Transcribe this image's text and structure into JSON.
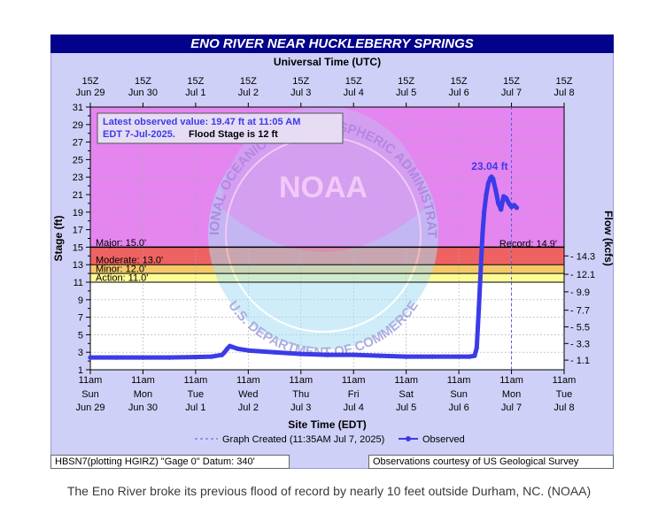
{
  "chart_data": {
    "type": "line",
    "title": "ENO RIVER NEAR HUCKLEBERRY SPRINGS",
    "top_axis_label": "Universal Time (UTC)",
    "xlabel": "Site Time (EDT)",
    "ylabel": "Stage (ft)",
    "y2label": "Flow (kcfs)",
    "ylim": [
      1,
      31
    ],
    "yticks": [
      "1",
      "3",
      "5",
      "7",
      "9",
      "11",
      "13",
      "15",
      "17",
      "19",
      "21",
      "23",
      "25",
      "27",
      "29",
      "31"
    ],
    "y2ticks": [
      {
        "stage": 2.1,
        "label": "1.1"
      },
      {
        "stage": 4.0,
        "label": "3.3"
      },
      {
        "stage": 5.9,
        "label": "5.5"
      },
      {
        "stage": 7.8,
        "label": "7.7"
      },
      {
        "stage": 9.9,
        "label": "9.9"
      },
      {
        "stage": 11.9,
        "label": "12.1"
      },
      {
        "stage": 14.0,
        "label": "14.3"
      }
    ],
    "x_ticks_top": [
      {
        "t": "15Z",
        "d": "Jun 29"
      },
      {
        "t": "15Z",
        "d": "Jun 30"
      },
      {
        "t": "15Z",
        "d": "Jul 1"
      },
      {
        "t": "15Z",
        "d": "Jul 2"
      },
      {
        "t": "15Z",
        "d": "Jul 3"
      },
      {
        "t": "15Z",
        "d": "Jul 4"
      },
      {
        "t": "15Z",
        "d": "Jul 5"
      },
      {
        "t": "15Z",
        "d": "Jul 6"
      },
      {
        "t": "15Z",
        "d": "Jul 7"
      },
      {
        "t": "15Z",
        "d": "Jul 8"
      }
    ],
    "x_ticks_bottom": [
      {
        "t": "11am",
        "w": "Sun",
        "d": "Jun 29"
      },
      {
        "t": "11am",
        "w": "Mon",
        "d": "Jun 30"
      },
      {
        "t": "11am",
        "w": "Tue",
        "d": "Jul 1"
      },
      {
        "t": "11am",
        "w": "Wed",
        "d": "Jul 2"
      },
      {
        "t": "11am",
        "w": "Thu",
        "d": "Jul 3"
      },
      {
        "t": "11am",
        "w": "Fri",
        "d": "Jul 4"
      },
      {
        "t": "11am",
        "w": "Sat",
        "d": "Jul 5"
      },
      {
        "t": "11am",
        "w": "Sun",
        "d": "Jul 6"
      },
      {
        "t": "11am",
        "w": "Mon",
        "d": "Jul 7"
      },
      {
        "t": "11am",
        "w": "Tue",
        "d": "Jul 8"
      }
    ],
    "bands": [
      {
        "from": 11,
        "to": 12,
        "color": "#fefe99"
      },
      {
        "from": 12,
        "to": 13,
        "color": "#f5c96a"
      },
      {
        "from": 13,
        "to": 15,
        "color": "#ee6262"
      },
      {
        "from": 15,
        "to": 31,
        "color": "#e485f0"
      }
    ],
    "thresholds": [
      {
        "name": "Major",
        "label": "Major: 15.0'",
        "value": 15.0
      },
      {
        "name": "Moderate",
        "label": "Moderate: 13.0'",
        "value": 13.0
      },
      {
        "name": "Minor",
        "label": "Minor: 12.0'",
        "value": 12.0
      },
      {
        "name": "Action",
        "label": "Action: 11.0'",
        "value": 11.0
      }
    ],
    "record": {
      "label": "Record: 14.9'",
      "value": 14.9
    },
    "peak_label": "23.04 ft",
    "peak": {
      "x": 7.62,
      "y": 23.04
    },
    "series": [
      {
        "name": "Observed",
        "color": "#3b3be8",
        "x": [
          0.0,
          0.5,
          1.0,
          1.5,
          2.0,
          2.3,
          2.5,
          2.55,
          2.6,
          2.65,
          2.7,
          2.8,
          3.0,
          3.5,
          4.0,
          4.5,
          5.0,
          5.5,
          6.0,
          6.5,
          7.0,
          7.2,
          7.3,
          7.34,
          7.38,
          7.42,
          7.45,
          7.48,
          7.52,
          7.56,
          7.6,
          7.62,
          7.65,
          7.7,
          7.75,
          7.8,
          7.85,
          7.9,
          7.95,
          8.0,
          8.05,
          8.1
        ],
        "y": [
          2.4,
          2.4,
          2.4,
          2.4,
          2.45,
          2.5,
          2.7,
          3.0,
          3.4,
          3.7,
          3.6,
          3.4,
          3.2,
          3.0,
          2.8,
          2.7,
          2.7,
          2.6,
          2.5,
          2.5,
          2.5,
          2.5,
          2.6,
          3.5,
          8.0,
          13.0,
          16.5,
          19.0,
          21.0,
          22.3,
          22.9,
          23.04,
          22.8,
          21.5,
          20.0,
          19.3,
          20.8,
          20.6,
          20.0,
          19.6,
          19.8,
          19.5
        ]
      }
    ],
    "graph_created_x": 8.0,
    "legend": {
      "graph_created": "Graph Created (11:35AM Jul 7, 2025)",
      "observed": "Observed",
      "placement": "bottom-center"
    },
    "annotation": {
      "line1": "Latest observed value: 19.47 ft at 11:05 AM",
      "line2a": "EDT 7-Jul-2025.",
      "line2b": "Flood Stage is 12 ft"
    },
    "watermark": "NOAA",
    "watermark_text_top": "NATIONAL OCEANIC AND ATMOSPHERIC ADMINISTRATION",
    "watermark_text_bottom": "U.S. DEPARTMENT OF COMMERCE"
  },
  "footer": {
    "left": "HBSN7(plotting HGIRZ) \"Gage 0\" Datum: 340'",
    "right": "Observations courtesy of US Geological Survey"
  },
  "caption": "The Eno River broke its previous flood of record by nearly 10 feet outside Durham, NC. (NOAA)"
}
